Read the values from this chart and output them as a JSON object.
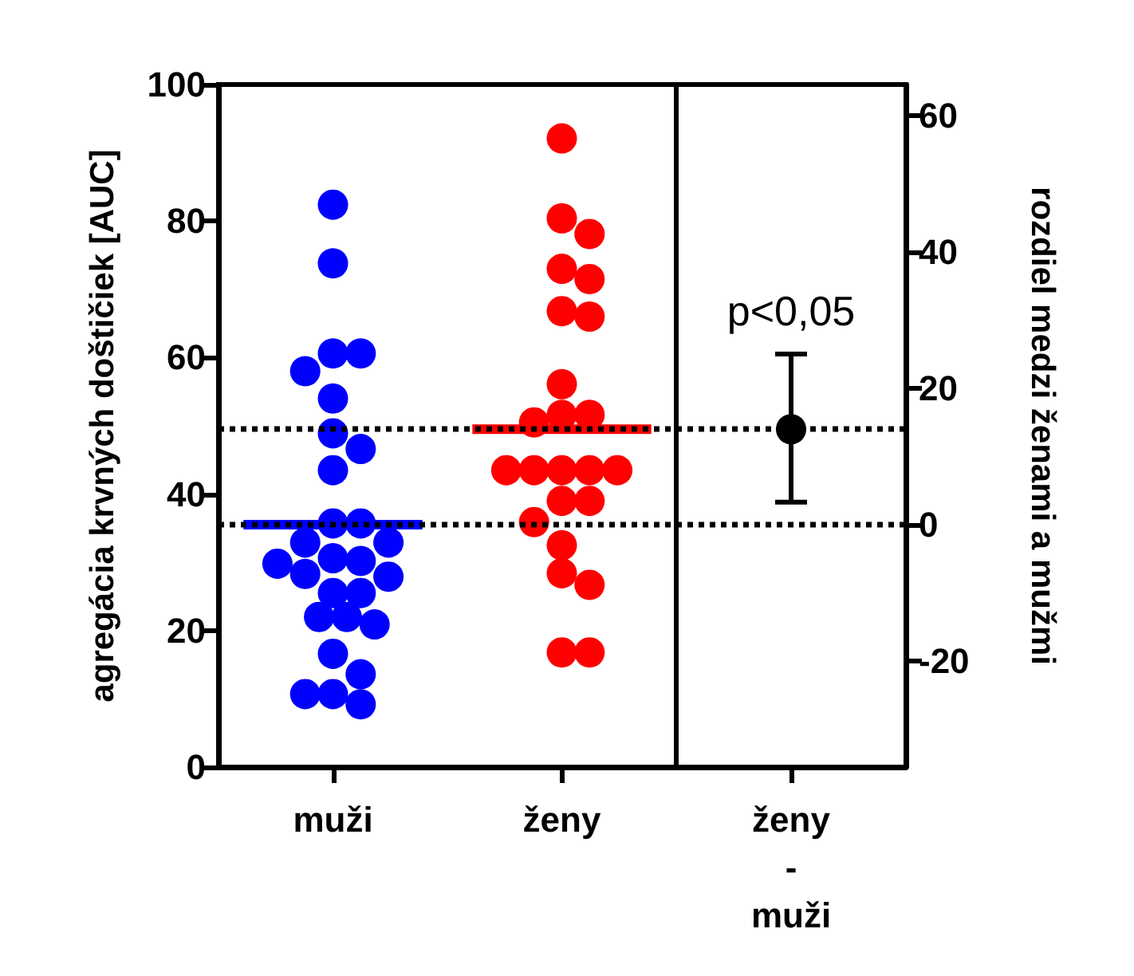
{
  "chart_data": [
    {
      "type": "scatter",
      "categories": [
        "muži",
        "ženy"
      ],
      "ylabel": "agregácia krvných doštičiek [AUC]",
      "ylim": [
        0,
        100
      ],
      "yticks": [
        0,
        20,
        40,
        60,
        80,
        100
      ],
      "marker": "circle",
      "grid": false,
      "ref_lines": [
        {
          "axis": "y",
          "value": 35.5,
          "color": "#000000",
          "line_style": "dotted"
        },
        {
          "axis": "y",
          "value": 49.5,
          "color": "#000000",
          "line_style": "dotted"
        }
      ],
      "series": [
        {
          "color": "#0000ff",
          "x": [
            "muži",
            "muži",
            "muži",
            "muži",
            "muži",
            "muži",
            "muži",
            "muži",
            "muži",
            "muži",
            "muži",
            "muži",
            "muži",
            "muži",
            "muži",
            "muži",
            "muži",
            "muži",
            "muži",
            "muži",
            "muži",
            "muži",
            "muži",
            "muži",
            "muži",
            "muži",
            "muži",
            "muži"
          ],
          "values": [
            82.4,
            73.8,
            60.6,
            60.6,
            58,
            54,
            48.9,
            46.6,
            43.5,
            35.7,
            35.7,
            32.9,
            32.9,
            30.6,
            30.2,
            29.8,
            28.3,
            27.9,
            25.5,
            25.5,
            22,
            22,
            20.9,
            16.6,
            13.6,
            10.7,
            10.7,
            9.2
          ]
        },
        {
          "color": "#ff0000",
          "x": [
            "ženy",
            "ženy",
            "ženy",
            "ženy",
            "ženy",
            "ženy",
            "ženy",
            "ženy",
            "ženy",
            "ženy",
            "ženy",
            "ženy",
            "ženy",
            "ženy",
            "ženy",
            "ženy",
            "ženy",
            "ženy",
            "ženy",
            "ženy",
            "ženy",
            "ženy",
            "ženy",
            "ženy"
          ],
          "values": [
            92.1,
            80.4,
            78.1,
            73,
            71.5,
            66.8,
            66,
            56.1,
            51.6,
            51.6,
            50.5,
            43.5,
            43.5,
            43.5,
            43.5,
            43.5,
            39,
            39,
            35.9,
            32.5,
            28.4,
            26.7,
            16.8,
            16.8
          ]
        },
        {
          "type": "box",
          "x": [
            "muži",
            "ženy"
          ],
          "colors": [
            "#0000ff",
            "#ff0000"
          ],
          "boxes": [
            {
              "low": 35.5,
              "q1": 35.5,
              "median": 35.5,
              "q3": 35.5,
              "high": 35.5
            },
            {
              "low": 49.5,
              "q1": 49.5,
              "median": 49.5,
              "q3": 49.5,
              "high": 49.5
            }
          ]
        }
      ]
    },
    {
      "type": "scatter",
      "categories": [
        "ženy\n-\nmuži"
      ],
      "y2label": "rozdiel medzi ženami a mužmi",
      "y2lim": [
        -35.5,
        64.5
      ],
      "y2ticks": [
        -20,
        0,
        20,
        40,
        60
      ],
      "marker": "circle",
      "grid": false,
      "ref_lines": [
        {
          "axis": "y2",
          "value": 0,
          "color": "#000000",
          "line_style": "dotted"
        },
        {
          "axis": "y2",
          "value": 14,
          "color": "#000000",
          "line_style": "dotted"
        }
      ],
      "annotations": [
        "p<0,05"
      ],
      "series": [
        {
          "axis": "y2",
          "color": "#000000",
          "x": [
            "ženy\n-\nmuži"
          ],
          "values": [
            14
          ],
          "errors": [
            [
              3.3,
              25
            ]
          ]
        }
      ]
    }
  ]
}
